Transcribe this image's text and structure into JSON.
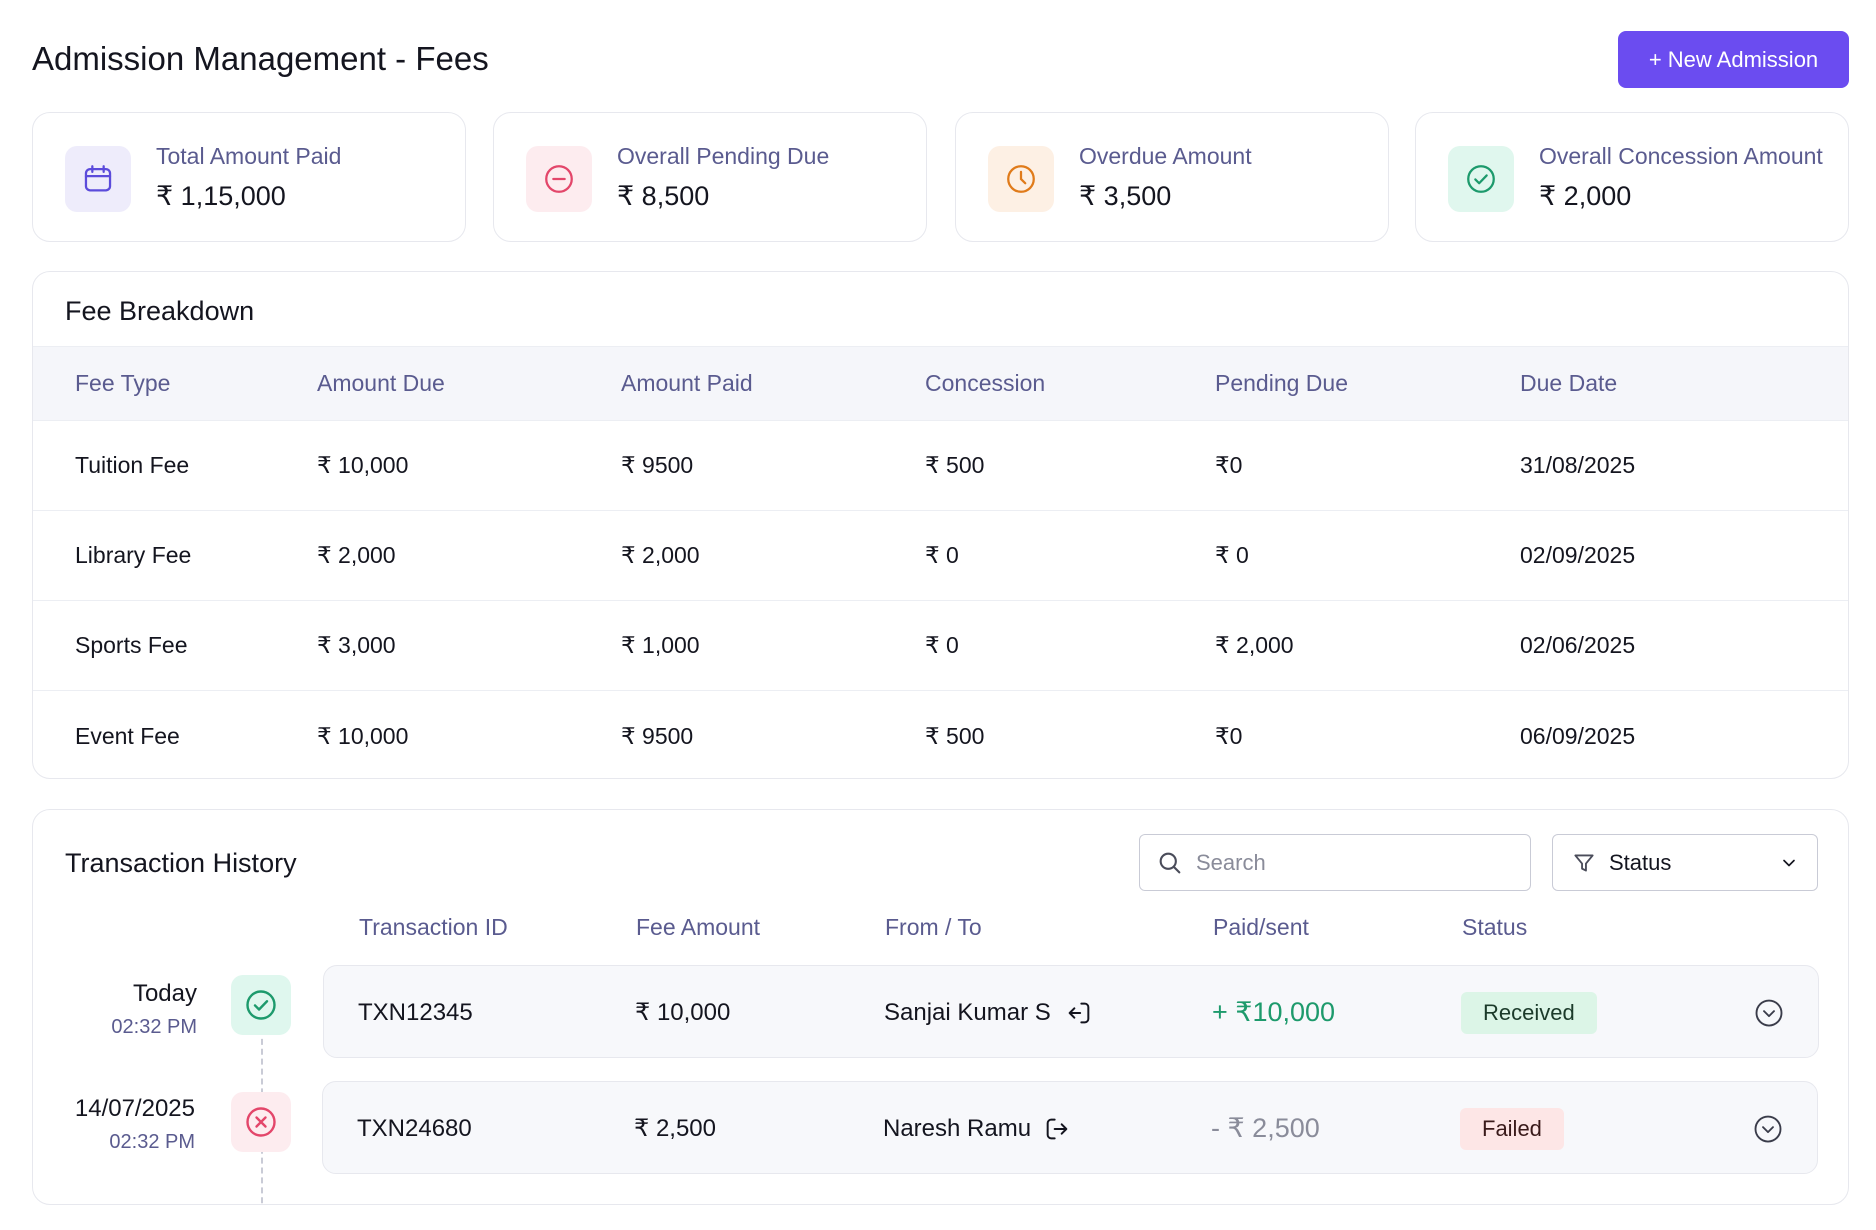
{
  "header": {
    "title": "Admission Management - Fees",
    "new_button_label": "+ New Admission"
  },
  "summary_cards": [
    {
      "label": "Total Amount Paid",
      "value": "₹ 1,15,000",
      "icon": "calendar-icon",
      "color": "#5b4bdb",
      "bg": "#eeecfb"
    },
    {
      "label": "Overall Pending Due",
      "value": "₹ 8,500",
      "icon": "minus-circle-icon",
      "color": "#e3466a",
      "bg": "#fdecef"
    },
    {
      "label": "Overdue Amount",
      "value": "₹ 3,500",
      "icon": "clock-icon",
      "color": "#e07b1a",
      "bg": "#fdf0e4"
    },
    {
      "label": "Overall Concession Amount",
      "value": "₹ 2,000",
      "icon": "check-circle-icon",
      "color": "#1d9a6c",
      "bg": "#e0f7ee"
    }
  ],
  "fee_breakdown": {
    "title": "Fee Breakdown",
    "columns": [
      "Fee Type",
      "Amount Due",
      "Amount Paid",
      "Concession",
      "Pending Due",
      "Due Date"
    ],
    "rows": [
      [
        "Tuition Fee",
        "₹ 10,000",
        "₹ 9500",
        "₹ 500",
        "₹0",
        "31/08/2025"
      ],
      [
        "Library Fee",
        "₹ 2,000",
        "₹ 2,000",
        "₹ 0",
        "₹ 0",
        "02/09/2025"
      ],
      [
        "Sports Fee",
        "₹ 3,000",
        "₹ 1,000",
        "₹ 0",
        "₹ 2,000",
        "02/06/2025"
      ],
      [
        "Event Fee",
        "₹ 10,000",
        "₹ 9500",
        "₹ 500",
        "₹0",
        "06/09/2025"
      ]
    ]
  },
  "transactions": {
    "title": "Transaction History",
    "search_placeholder": "Search",
    "status_filter_label": "Status",
    "columns": [
      "Transaction ID",
      "Fee Amount",
      "From / To",
      "Paid/sent",
      "Status"
    ],
    "items": [
      {
        "date": "Today",
        "time": "02:32 PM",
        "id": "TXN12345",
        "fee_amount": "₹ 10,000",
        "party": "Sanjai Kumar S",
        "direction_icon": "login-icon",
        "paid_sent": "+ ₹10,000",
        "status": "Received",
        "state": "success"
      },
      {
        "date": "14/07/2025",
        "time": "02:32 PM",
        "id": "TXN24680",
        "fee_amount": "₹ 2,500",
        "party": "Naresh Ramu",
        "direction_icon": "logout-icon",
        "paid_sent": "- ₹ 2,500",
        "status": "Failed",
        "state": "failed"
      }
    ]
  },
  "colors": {
    "accent": "#6b4cf0",
    "success": "#1d9a6c",
    "danger": "#e3466a",
    "muted_text": "#5a5b8f"
  }
}
